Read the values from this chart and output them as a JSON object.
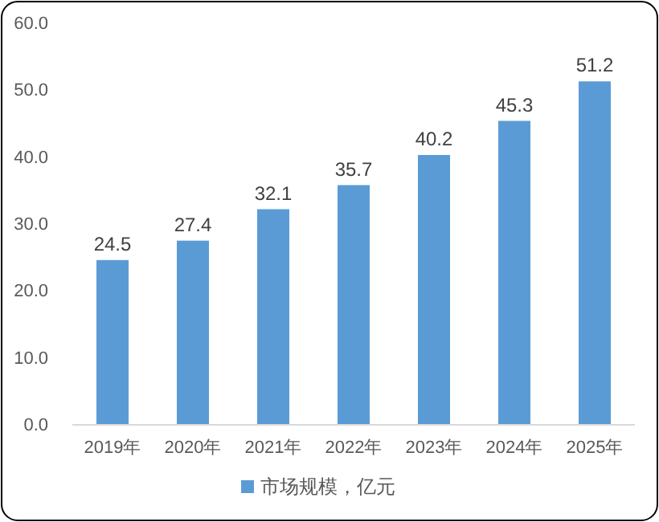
{
  "chart_data": {
    "type": "bar",
    "categories": [
      "2019年",
      "2020年",
      "2021年",
      "2022年",
      "2023年",
      "2024年",
      "2025年"
    ],
    "series": [
      {
        "name": "市场规模，亿元",
        "color": "#5b9bd5",
        "values": [
          24.5,
          27.4,
          32.1,
          35.7,
          40.2,
          45.3,
          51.2
        ]
      }
    ],
    "ylim": [
      0,
      60
    ],
    "yticks": [
      {
        "value": 0,
        "label": "0.0"
      },
      {
        "value": 10,
        "label": "10.0"
      },
      {
        "value": 20,
        "label": "20.0"
      },
      {
        "value": 30,
        "label": "30.0"
      },
      {
        "value": 40,
        "label": "40.0"
      },
      {
        "value": 50,
        "label": "50.0"
      },
      {
        "value": 60,
        "label": "60.0"
      }
    ],
    "data_labels": true,
    "grid": false,
    "legend": "bottom"
  }
}
